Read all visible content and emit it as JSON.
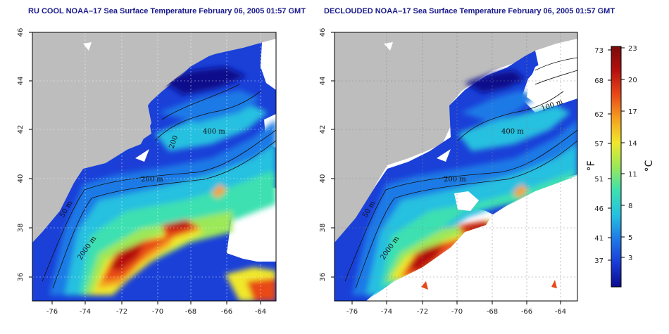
{
  "left_panel": {
    "title": "RU COOL NOAA–17 Sea Surface Temperature February 06, 2005 01:57 GMT",
    "lon_ticks": [
      "-76",
      "-74",
      "-72",
      "-70",
      "-68",
      "-66",
      "-64"
    ],
    "lat_ticks": [
      "36",
      "38",
      "40",
      "42",
      "44",
      "46"
    ],
    "contour_labels": [
      "200 m",
      "400 m",
      "50 m",
      "2000 m",
      "200"
    ]
  },
  "right_panel": {
    "title": "DECLOUDED NOAA–17 Sea Surface Temperature February 06, 2005 01:57 GMT",
    "lon_ticks": [
      "-76",
      "-74",
      "-72",
      "-70",
      "-68",
      "-66",
      "-64"
    ],
    "lat_ticks": [
      "36",
      "38",
      "40",
      "42",
      "44",
      "46"
    ],
    "contour_labels": [
      "200 m",
      "400 m",
      "100 m",
      "50 m",
      "2000 m"
    ]
  },
  "colorbar": {
    "fahrenheit_label": "°F",
    "celsius_label": "°C",
    "fahrenheit_ticks": [
      "73",
      "68",
      "62",
      "57",
      "51",
      "46",
      "41",
      "37"
    ],
    "celsius_ticks": [
      "23",
      "20",
      "17",
      "14",
      "11",
      "8",
      "5",
      "3"
    ],
    "colors": [
      "#0a0a8c",
      "#1a3cd6",
      "#1f7ae6",
      "#26c0e0",
      "#3de0b0",
      "#9be858",
      "#f0e82c",
      "#f5a020",
      "#e84818",
      "#b41010",
      "#7a0a0a"
    ]
  },
  "colors": {
    "land": "#bdbdbd",
    "cloud": "#ffffff",
    "title": "#1a1a8c"
  }
}
